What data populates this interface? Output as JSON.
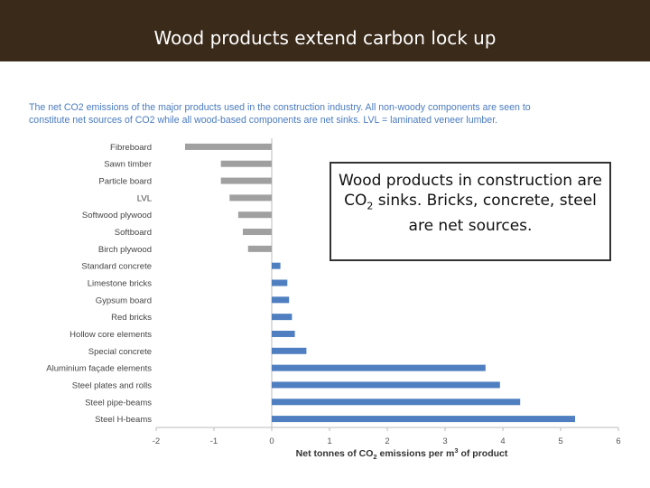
{
  "slide": {
    "title": "Wood products extend carbon lock up"
  },
  "caption": {
    "line1": "The net CO2 emissions of the major products used in the construction industry. All non-woody components are seen to",
    "line2": "constitute net sources of CO2 while all wood-based components are net sinks. LVL = laminated veneer lumber."
  },
  "callout": {
    "part1": "Wood products in construction are CO",
    "sub": "2",
    "part2": " sinks. Bricks, concrete, steel are net sources."
  },
  "colors": {
    "title_bg": "#3a2a1a",
    "sink_bar": "#a0a0a0",
    "source_bar": "#4f7fc1",
    "caption_text": "#4a7bbf"
  },
  "chart_data": {
    "type": "bar",
    "orientation": "horizontal",
    "categories": [
      "Fibreboard",
      "Sawn timber",
      "Particle board",
      "LVL",
      "Softwood plywood",
      "Softboard",
      "Birch plywood",
      "Standard concrete",
      "Limestone bricks",
      "Gypsum board",
      "Red bricks",
      "Hollow core elements",
      "Special concrete",
      "Aluminium façade elements",
      "Steel plates and rolls",
      "Steel pipe-beams",
      "Steel H-beams"
    ],
    "values": [
      -1.5,
      -0.88,
      -0.88,
      -0.73,
      -0.58,
      -0.5,
      -0.41,
      0.15,
      0.27,
      0.3,
      0.35,
      0.4,
      0.6,
      3.7,
      3.95,
      4.3,
      5.25
    ],
    "xlabel_pre": "Net tonnes of CO",
    "xlabel_sub": "2",
    "xlabel_mid": " emissions per m",
    "xlabel_sup": "3",
    "xlabel_post": " of product",
    "xlim": [
      -2,
      6
    ],
    "xticks": [
      -2,
      -1,
      0,
      1,
      2,
      3,
      4,
      5,
      6
    ],
    "grid": false,
    "legend": "none"
  }
}
